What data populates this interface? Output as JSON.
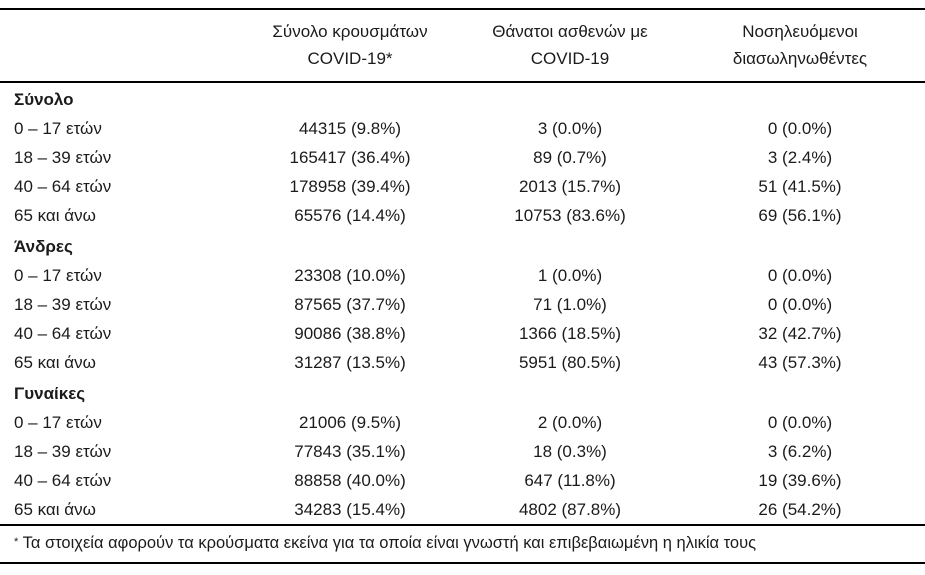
{
  "table": {
    "columns": [
      {
        "line1": "Σύνολο κρουσμάτων",
        "line2": "COVID-19*"
      },
      {
        "line1": "Θάνατοι ασθενών με",
        "line2": "COVID-19"
      },
      {
        "line1": "Νοσηλευόμενοι",
        "line2": "διασωληνωθέντες"
      }
    ],
    "sections": [
      {
        "title": "Σύνολο",
        "rows": [
          {
            "label": "0 – 17 ετών",
            "cases": "44315 (9.8%)",
            "deaths": "3 (0.0%)",
            "intubated": "0 (0.0%)"
          },
          {
            "label": "18 – 39 ετών",
            "cases": "165417 (36.4%)",
            "deaths": "89 (0.7%)",
            "intubated": "3 (2.4%)"
          },
          {
            "label": "40 – 64 ετών",
            "cases": "178958 (39.4%)",
            "deaths": "2013 (15.7%)",
            "intubated": "51 (41.5%)"
          },
          {
            "label": "65 και άνω",
            "cases": "65576 (14.4%)",
            "deaths": "10753 (83.6%)",
            "intubated": "69 (56.1%)"
          }
        ]
      },
      {
        "title": "Άνδρες",
        "rows": [
          {
            "label": "0 – 17 ετών",
            "cases": "23308 (10.0%)",
            "deaths": "1 (0.0%)",
            "intubated": "0 (0.0%)"
          },
          {
            "label": "18 – 39 ετών",
            "cases": "87565 (37.7%)",
            "deaths": "71 (1.0%)",
            "intubated": "0 (0.0%)"
          },
          {
            "label": "40 – 64 ετών",
            "cases": "90086 (38.8%)",
            "deaths": "1366 (18.5%)",
            "intubated": "32 (42.7%)"
          },
          {
            "label": "65 και άνω",
            "cases": "31287 (13.5%)",
            "deaths": "5951 (80.5%)",
            "intubated": "43 (57.3%)"
          }
        ]
      },
      {
        "title": "Γυναίκες",
        "rows": [
          {
            "label": "0 – 17 ετών",
            "cases": "21006 (9.5%)",
            "deaths": "2 (0.0%)",
            "intubated": "0 (0.0%)"
          },
          {
            "label": "18 – 39 ετών",
            "cases": "77843 (35.1%)",
            "deaths": "18 (0.3%)",
            "intubated": "3 (6.2%)"
          },
          {
            "label": "40 – 64 ετών",
            "cases": "88858 (40.0%)",
            "deaths": "647 (11.8%)",
            "intubated": "19 (39.6%)"
          },
          {
            "label": "65 και άνω",
            "cases": "34283 (15.4%)",
            "deaths": "4802 (87.8%)",
            "intubated": "26 (54.2%)"
          }
        ]
      }
    ],
    "footnote_marker": "*",
    "footnote_text": "Τα στοιχεία αφορούν τα κρούσματα εκείνα για τα οποία είναι γνωστή και επιβεβαιωμένη η ηλικία τους"
  }
}
